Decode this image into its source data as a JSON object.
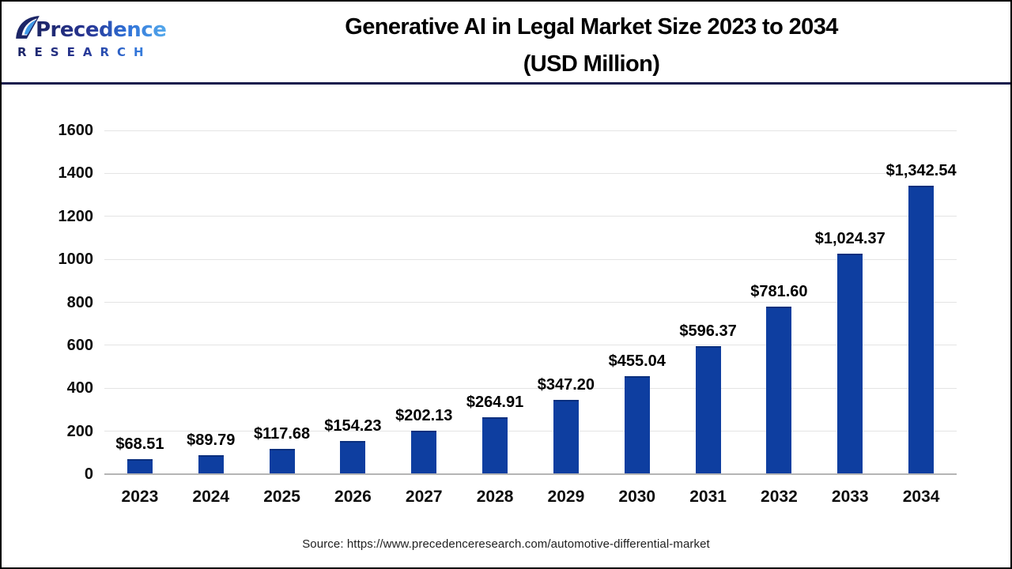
{
  "header": {
    "logo": {
      "name": "Precedence",
      "subtext": "RESEARCH"
    },
    "title_line1": "Generative AI in Legal Market Size 2023 to 2034",
    "title_line2": "(USD Million)"
  },
  "chart_data": {
    "type": "bar",
    "title": "Generative AI in Legal Market Size 2023 to 2034 (USD Million)",
    "categories": [
      "2023",
      "2024",
      "2025",
      "2026",
      "2027",
      "2028",
      "2029",
      "2030",
      "2031",
      "2032",
      "2033",
      "2034"
    ],
    "values": [
      68.51,
      89.79,
      117.68,
      154.23,
      202.13,
      264.91,
      347.2,
      455.04,
      596.37,
      781.6,
      1024.37,
      1342.54
    ],
    "labels": [
      "$68.51",
      "$89.79",
      "$117.68",
      "$154.23",
      "$202.13",
      "$264.91",
      "$347.20",
      "$455.04",
      "$596.37",
      "$781.60",
      "$1,024.37",
      "$1,342.54"
    ],
    "xlabel": "",
    "ylabel": "",
    "ylim": [
      0,
      1600
    ],
    "ytick_step": 200,
    "yticks": [
      "0",
      "200",
      "400",
      "600",
      "800",
      "1000",
      "1200",
      "1400",
      "1600"
    ],
    "grid": true,
    "legend": "none",
    "bar_color": "#0e3ea0"
  },
  "footer": {
    "source": "Source: https://www.precedenceresearch.com/automotive-differential-market"
  }
}
